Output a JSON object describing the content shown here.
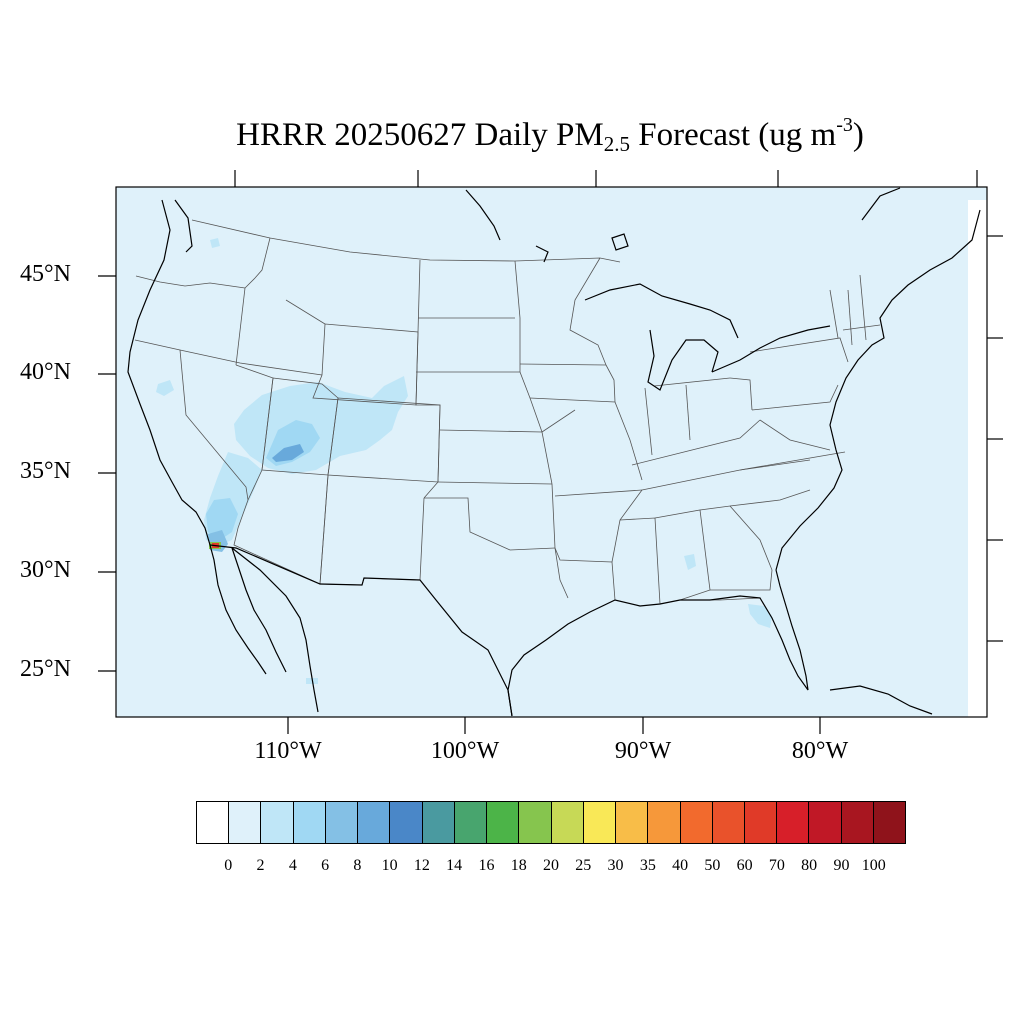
{
  "title": {
    "prefix": "HRRR 20250627 Daily PM",
    "subscript": "2.5",
    "mid": " Forecast (ug m",
    "superscript": "-3",
    "suffix": ")"
  },
  "map": {
    "lat_labels": [
      "45°N",
      "40°N",
      "35°N",
      "30°N",
      "25°N"
    ],
    "lon_labels": [
      "110°W",
      "100°W",
      "90°W",
      "80°W"
    ],
    "background_color": "#dff1fa",
    "field_features": [
      {
        "region": "Utah-Colorado smoke plume",
        "level": "2-6"
      },
      {
        "region": "Southern Nevada / Arizona border",
        "level": "2-8"
      },
      {
        "region": "US-Mexico border near Baja California",
        "level": "up to 40+"
      },
      {
        "region": "Central Florida",
        "level": "2-4"
      },
      {
        "region": "Alabama / Georgia",
        "level": "2-4"
      }
    ]
  },
  "colorbar": {
    "colors": [
      "#ffffff",
      "#dff1fa",
      "#bfe6f7",
      "#a0d8f3",
      "#84c0e5",
      "#68a9db",
      "#4a87c8",
      "#4a9aa0",
      "#48a56e",
      "#4cb448",
      "#86c54e",
      "#c7d956",
      "#f9e857",
      "#f8bd48",
      "#f6983a",
      "#f26a2d",
      "#e9522b",
      "#e03a28",
      "#d71f29",
      "#c01826",
      "#a81620",
      "#8f131b"
    ],
    "labels": [
      "0",
      "2",
      "4",
      "6",
      "8",
      "10",
      "12",
      "14",
      "16",
      "18",
      "20",
      "25",
      "30",
      "35",
      "40",
      "50",
      "60",
      "70",
      "80",
      "90",
      "100"
    ]
  }
}
